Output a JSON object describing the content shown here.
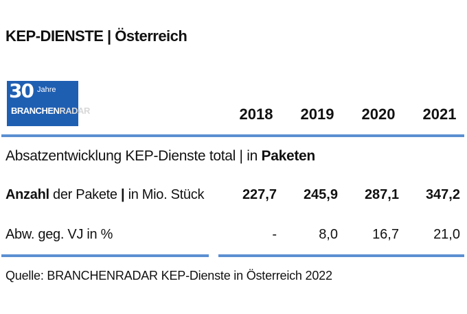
{
  "title": "KEP-DIENSTE | Österreich",
  "logo": {
    "number": "30",
    "jahre": "Jahre",
    "brand_a": "BRANCHEN",
    "brand_b": "RADAR"
  },
  "chart_data": {
    "type": "table",
    "columns": [
      "2018",
      "2019",
      "2020",
      "2021"
    ],
    "subtitle_prefix": "Absatzentwicklung KEP-Dienste total | in ",
    "subtitle_bold": "Paketen",
    "rows": [
      {
        "label_bold": "Anzahl",
        "label_rest": " der Pakete ",
        "label_sep": "|",
        "label_unit": " in Mio. Stück",
        "values": [
          "227,7",
          "245,9",
          "287,1",
          "347,2"
        ]
      },
      {
        "label": "Abw. geg. VJ in %",
        "values": [
          "-",
          "8,0",
          "16,7",
          "21,0"
        ]
      }
    ]
  },
  "source": "Quelle: BRANCHENRADAR KEP-Dienste in Österreich 2022"
}
